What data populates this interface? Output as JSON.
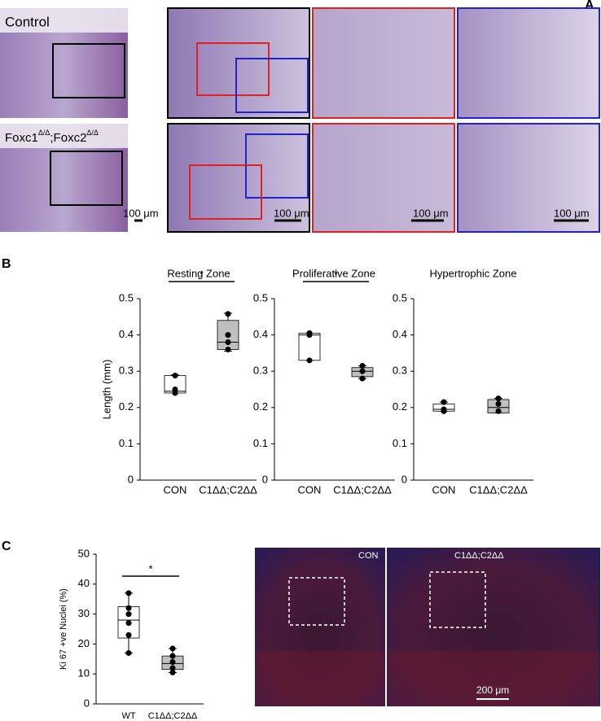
{
  "panels": {
    "a": "A",
    "b": "B",
    "c": "C"
  },
  "histology": {
    "control": "Control",
    "mutant_gene1": "Foxc1",
    "mutant_sup1": "Δ/Δ",
    "mutant_gene2": ";Foxc2",
    "mutant_sup2": "Δ/Δ",
    "scale_bars": [
      "100 μm",
      "100 μm",
      "100 μm",
      "100 μm"
    ]
  },
  "fluorescence": {
    "left": "CON",
    "right": "C1ΔΔ;C2ΔΔ",
    "scale_bar": "200 μm"
  },
  "chart_data": [
    {
      "type": "box",
      "title": "Resting Zone",
      "ylabel": "Length (mm)",
      "categories": [
        "CON",
        "C1ΔΔ;C2ΔΔ"
      ],
      "significance": "*",
      "boxes": [
        {
          "min": 0.24,
          "q1": 0.24,
          "median": 0.245,
          "q3": 0.288,
          "max": 0.29,
          "points": [
            0.288,
            0.25,
            0.24
          ],
          "color": "#ffffff"
        },
        {
          "min": 0.355,
          "q1": 0.36,
          "median": 0.38,
          "q3": 0.44,
          "max": 0.46,
          "points": [
            0.458,
            0.4,
            0.38,
            0.36
          ],
          "color": "#bfbfbf"
        }
      ],
      "ylim": [
        0,
        0.5
      ],
      "yticks": [
        0,
        0.1,
        0.2,
        0.3,
        0.4,
        0.5
      ]
    },
    {
      "type": "box",
      "title": "Proliferative Zone",
      "categories": [
        "CON",
        "C1ΔΔ;C2ΔΔ"
      ],
      "significance": "*",
      "boxes": [
        {
          "min": 0.33,
          "q1": 0.33,
          "median": 0.4,
          "q3": 0.405,
          "max": 0.405,
          "points": [
            0.405,
            0.4,
            0.33
          ],
          "color": "#ffffff"
        },
        {
          "min": 0.28,
          "q1": 0.285,
          "median": 0.3,
          "q3": 0.31,
          "max": 0.315,
          "points": [
            0.315,
            0.3,
            0.28
          ],
          "color": "#bfbfbf"
        }
      ],
      "ylim": [
        0,
        0.5
      ],
      "yticks": [
        0,
        0.1,
        0.2,
        0.3,
        0.4,
        0.5
      ]
    },
    {
      "type": "box",
      "title": "Hypertrophic Zone",
      "categories": [
        "CON",
        "C1ΔΔ;C2ΔΔ"
      ],
      "boxes": [
        {
          "min": 0.19,
          "q1": 0.19,
          "median": 0.195,
          "q3": 0.21,
          "max": 0.215,
          "points": [
            0.215,
            0.195,
            0.19
          ],
          "color": "#ffffff"
        },
        {
          "min": 0.185,
          "q1": 0.185,
          "median": 0.2,
          "q3": 0.222,
          "max": 0.225,
          "points": [
            0.225,
            0.21,
            0.19
          ],
          "color": "#bfbfbf"
        }
      ],
      "ylim": [
        0,
        0.5
      ],
      "yticks": [
        0,
        0.1,
        0.2,
        0.3,
        0.4,
        0.5
      ]
    },
    {
      "type": "box",
      "ylabel": "Ki 67 +ve Nuclei (%)",
      "categories": [
        "WT",
        "C1ΔΔ;C2ΔΔ"
      ],
      "significance": "*",
      "boxes": [
        {
          "min": 17,
          "q1": 22,
          "median": 28,
          "q3": 32.5,
          "max": 37,
          "points": [
            37,
            32,
            30,
            27,
            23,
            17
          ],
          "color": "#ffffff"
        },
        {
          "min": 10.5,
          "q1": 11.5,
          "median": 13.5,
          "q3": 16,
          "max": 18.5,
          "points": [
            18.5,
            16,
            14,
            12,
            10.5
          ],
          "color": "#bfbfbf"
        }
      ],
      "ylim": [
        0,
        50
      ],
      "yticks": [
        0,
        10,
        20,
        30,
        40,
        50
      ]
    }
  ]
}
